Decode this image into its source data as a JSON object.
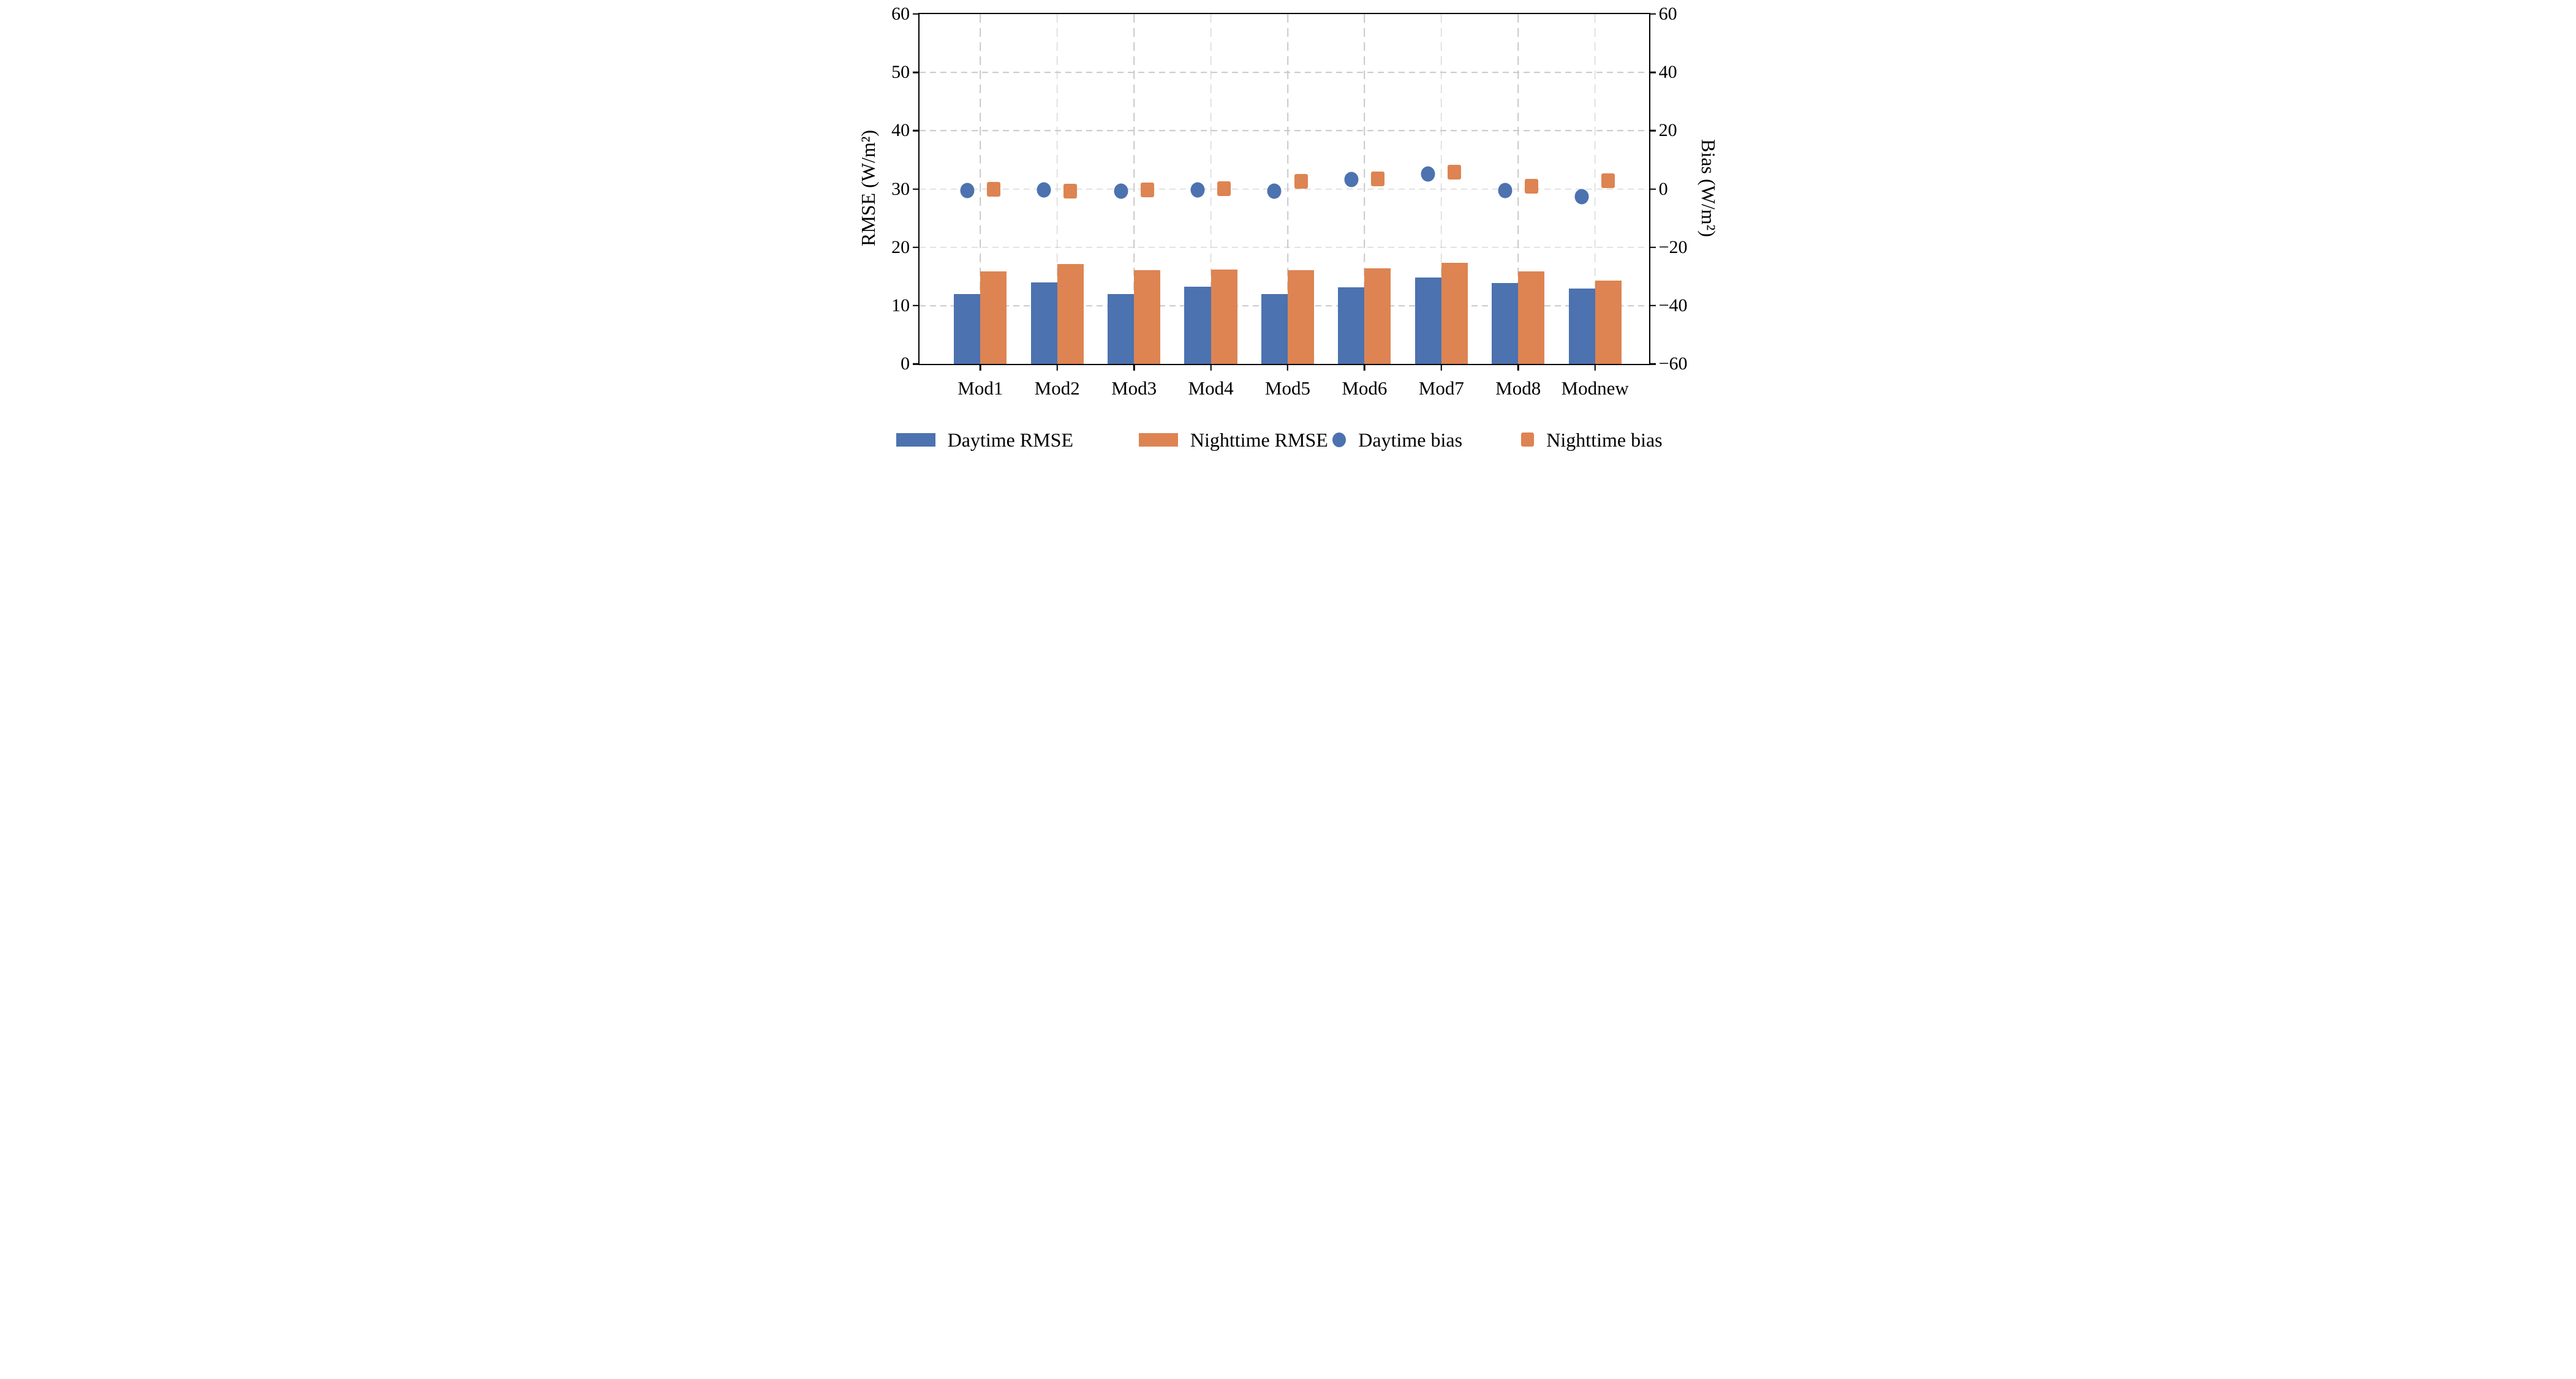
{
  "chart_data": {
    "type": "bar+scatter",
    "title": "",
    "categories": [
      "Mod1",
      "Mod2",
      "Mod3",
      "Mod4",
      "Mod5",
      "Mod6",
      "Mod7",
      "Mod8",
      "Modnew"
    ],
    "series": [
      {
        "name": "Daytime RMSE",
        "type": "bar",
        "axis": "left",
        "color": "#4C72B0",
        "values": [
          12.0,
          14.0,
          12.0,
          13.3,
          12.0,
          13.2,
          14.8,
          13.9,
          12.9
        ]
      },
      {
        "name": "Nighttime RMSE",
        "type": "bar",
        "axis": "left",
        "color": "#DD8452",
        "values": [
          15.9,
          17.1,
          16.1,
          16.2,
          16.1,
          16.4,
          17.4,
          15.9,
          14.3
        ]
      },
      {
        "name": "Daytime bias",
        "type": "scatter",
        "marker": "circle",
        "axis": "right",
        "color": "#4C72B0",
        "values": [
          -0.5,
          -0.3,
          -0.7,
          -0.4,
          -0.7,
          3.2,
          5.2,
          -0.6,
          -2.7
        ]
      },
      {
        "name": "Nighttime bias",
        "type": "scatter",
        "marker": "square",
        "axis": "right",
        "color": "#DD8452",
        "values": [
          -0.1,
          -0.7,
          -0.2,
          0.1,
          2.6,
          3.4,
          5.7,
          1.0,
          2.8
        ]
      }
    ],
    "ylabel": "RMSE (W/m²)",
    "y2label": "Bias (W/m²)",
    "ylim": [
      0,
      60
    ],
    "y2lim": [
      -60,
      60
    ],
    "yticks": [
      0,
      10,
      20,
      30,
      40,
      50,
      60
    ],
    "y2ticks": [
      -60,
      -40,
      -20,
      0,
      20,
      40,
      60
    ],
    "grid": true,
    "grid_color": "#c8c8c8",
    "spine_color": "#000000",
    "legend_position": "bottom"
  }
}
